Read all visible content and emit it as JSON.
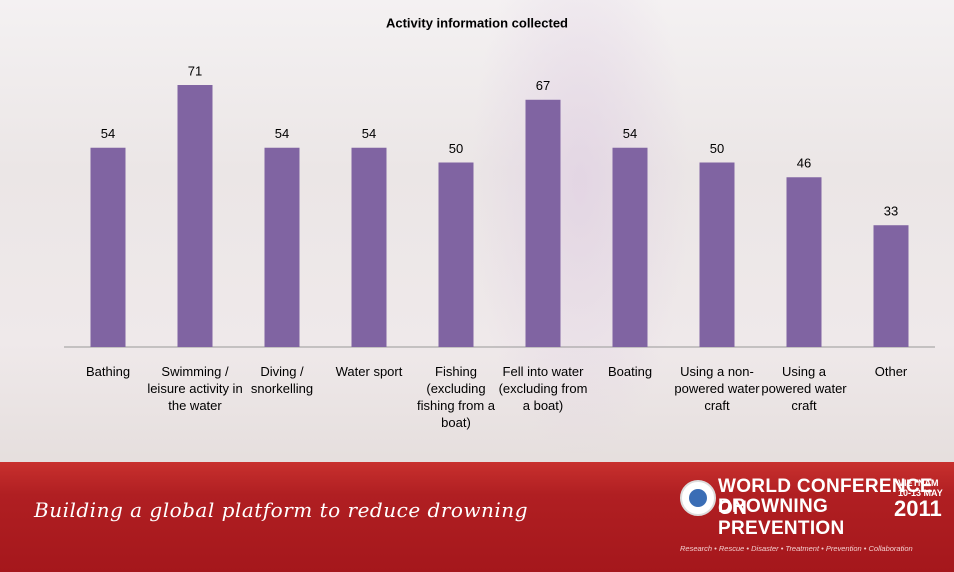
{
  "chart_data": {
    "type": "bar",
    "title": "Activity information collected",
    "categories": [
      "Bathing",
      "Swimming / leisure activity in the water",
      "Diving / snorkelling",
      "Water sport",
      "Fishing (excluding fishing from a boat)",
      "Fell into water (excluding from a boat)",
      "Boating",
      "Using a non-powered water craft",
      "Using a powered water craft",
      "Other"
    ],
    "values": [
      54,
      71,
      54,
      54,
      50,
      67,
      54,
      50,
      46,
      33
    ],
    "color": "#8064a2"
  },
  "footer": {
    "slogan": "Building a global platform to reduce drowning",
    "conference_line1": "WORLD CONFERENCE ON",
    "conference_line2": "DROWNING PREVENTION",
    "location": "VIETNAM",
    "dates": "10-13 MAY",
    "year": "2011",
    "tagline": "Research • Rescue • Disaster • Treatment • Prevention • Collaboration"
  }
}
